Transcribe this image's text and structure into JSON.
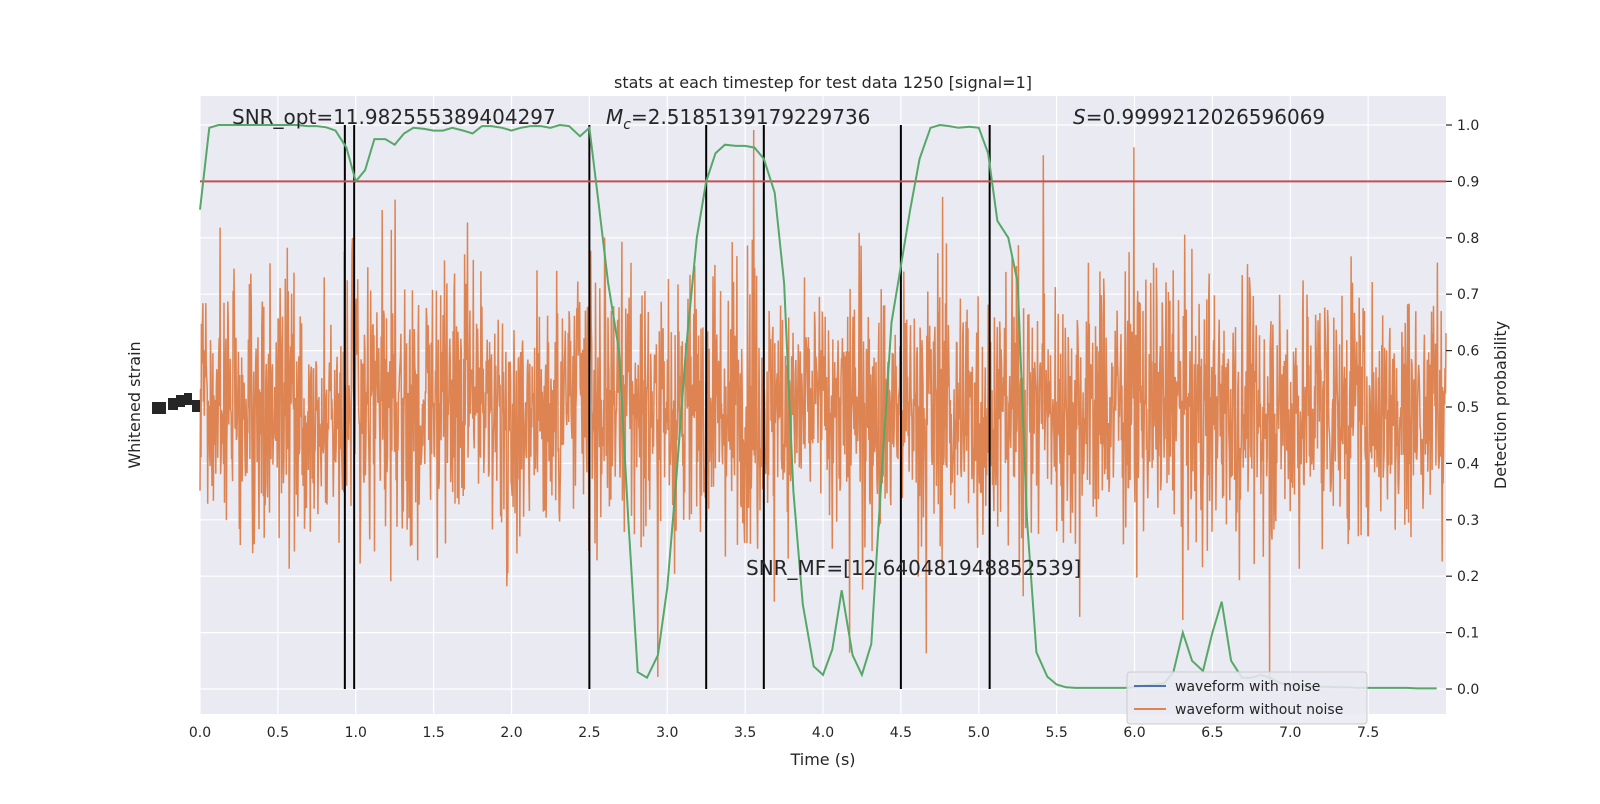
{
  "chart_data": {
    "type": "line",
    "title": "stats at each timestep for test data 1250 [signal=1]",
    "xlabel": "Time (s)",
    "ylabel_left": "Whitened strain",
    "ylabel_right": "Detection probability",
    "xlim": [
      0.0,
      8.0
    ],
    "xticks": [
      0.0,
      0.5,
      1.0,
      1.5,
      2.0,
      2.5,
      3.0,
      3.5,
      4.0,
      4.5,
      5.0,
      5.5,
      6.0,
      6.5,
      7.0,
      7.5
    ],
    "xtick_labels": [
      "0.0",
      "0.5",
      "1.0",
      "1.5",
      "2.0",
      "2.5",
      "3.0",
      "3.5",
      "4.0",
      "4.5",
      "5.0",
      "5.5",
      "6.0",
      "6.5",
      "7.0",
      "7.5"
    ],
    "ylim_right": [
      -0.05,
      1.05
    ],
    "yticks_right": [
      0.0,
      0.1,
      0.2,
      0.3,
      0.4,
      0.5,
      0.6,
      0.7,
      0.8,
      0.9,
      1.0
    ],
    "ytick_labels_right": [
      "0.0",
      "0.1",
      "0.2",
      "0.3",
      "0.4",
      "0.5",
      "0.6",
      "0.7",
      "0.8",
      "0.9",
      "1.0"
    ],
    "grid": true,
    "threshold": 0.9,
    "vertical_lines": [
      0.93,
      0.99,
      2.5,
      3.25,
      3.62,
      4.5,
      5.07
    ],
    "series": [
      {
        "name": "waveform with noise",
        "color": "#4c72b0",
        "axis": "left",
        "visible": false
      },
      {
        "name": "waveform without noise",
        "color": "#dd8452",
        "axis": "left",
        "style": "dense-noise"
      },
      {
        "axis": "right",
        "color": "#55a868",
        "x": [
          0.0,
          0.06,
          0.12,
          0.19,
          0.25,
          0.31,
          0.37,
          0.44,
          0.5,
          0.56,
          0.62,
          0.69,
          0.75,
          0.81,
          0.87,
          0.94,
          1.0,
          1.06,
          1.12,
          1.19,
          1.25,
          1.31,
          1.37,
          1.44,
          1.5,
          1.56,
          1.62,
          1.69,
          1.75,
          1.81,
          1.87,
          1.94,
          2.0,
          2.06,
          2.12,
          2.19,
          2.25,
          2.31,
          2.37,
          2.44,
          2.5,
          2.56,
          2.62,
          2.69,
          2.75,
          2.81,
          2.87,
          2.94,
          3.0,
          3.06,
          3.12,
          3.19,
          3.25,
          3.31,
          3.37,
          3.44,
          3.5,
          3.56,
          3.62,
          3.69,
          3.75,
          3.81,
          3.87,
          3.94,
          4.0,
          4.06,
          4.12,
          4.19,
          4.25,
          4.31,
          4.37,
          4.44,
          4.5,
          4.56,
          4.62,
          4.69,
          4.75,
          4.81,
          4.87,
          4.94,
          5.0,
          5.06,
          5.12,
          5.19,
          5.25,
          5.31,
          5.37,
          5.44,
          5.5,
          5.56,
          5.62,
          5.69,
          5.75,
          5.81,
          5.87,
          5.94,
          6.0,
          6.06,
          6.12,
          6.19,
          6.25,
          6.31,
          6.37,
          6.44,
          6.5,
          6.56,
          6.62,
          6.69,
          6.75,
          6.81,
          6.87,
          6.94,
          7.0,
          7.06,
          7.12,
          7.19,
          7.25,
          7.31,
          7.37,
          7.44,
          7.5,
          7.56,
          7.62,
          7.69,
          7.75,
          7.81,
          7.87,
          7.94
        ],
        "y": [
          0.85,
          0.995,
          1.0,
          1.0,
          1.0,
          1.0,
          1.0,
          1.0,
          1.0,
          1.0,
          1.0,
          0.998,
          0.998,
          0.996,
          0.99,
          0.96,
          0.9,
          0.92,
          0.975,
          0.975,
          0.965,
          0.985,
          0.995,
          0.993,
          0.99,
          0.99,
          0.995,
          0.99,
          0.985,
          0.998,
          0.998,
          0.995,
          0.99,
          0.995,
          0.998,
          0.998,
          0.995,
          1.0,
          0.998,
          0.98,
          0.995,
          0.86,
          0.72,
          0.6,
          0.3,
          0.03,
          0.02,
          0.06,
          0.18,
          0.38,
          0.6,
          0.8,
          0.9,
          0.95,
          0.965,
          0.963,
          0.963,
          0.96,
          0.94,
          0.88,
          0.72,
          0.35,
          0.15,
          0.04,
          0.025,
          0.07,
          0.175,
          0.06,
          0.025,
          0.08,
          0.35,
          0.65,
          0.75,
          0.85,
          0.94,
          0.995,
          1.0,
          0.998,
          0.995,
          0.997,
          0.995,
          0.95,
          0.83,
          0.8,
          0.72,
          0.3,
          0.065,
          0.022,
          0.008,
          0.003,
          0.002,
          0.002,
          0.002,
          0.002,
          0.002,
          0.002,
          0.003,
          0.006,
          0.008,
          0.01,
          0.03,
          0.1,
          0.05,
          0.032,
          0.1,
          0.155,
          0.05,
          0.02,
          0.02,
          0.025,
          0.02,
          0.01,
          0.008,
          0.006,
          0.005,
          0.004,
          0.004,
          0.003,
          0.003,
          0.002,
          0.002,
          0.002,
          0.002,
          0.002,
          0.002,
          0.001,
          0.001,
          0.001
        ]
      },
      {
        "axis": "right",
        "color": "#c44e52",
        "style": "horizontal",
        "value": 0.9
      }
    ],
    "annotations": [
      {
        "id": "snr_opt",
        "text": "SNR_opt=11.982555389404297"
      },
      {
        "id": "mc_symbol",
        "text": "M"
      },
      {
        "id": "mc_sub",
        "text": "c"
      },
      {
        "id": "mc_value",
        "text": "=2.5185139179229736"
      },
      {
        "id": "s_symbol",
        "text": "S"
      },
      {
        "id": "s_value",
        "text": "=0.9999212026596069"
      },
      {
        "id": "snr_mf",
        "text": "SNR_MF=[12.640481948852539]"
      }
    ],
    "legend": {
      "placement": "lower-right",
      "entries": [
        "waveform with noise",
        "waveform without noise"
      ]
    },
    "colors": {
      "axes_bg": "#eaeaf2",
      "grid": "#ffffff",
      "noise": "#dd8452",
      "probability": "#55a868",
      "threshold": "#c44e52",
      "vline": "#000000",
      "legend_with_noise": "#4c72b0",
      "legend_without_noise": "#dd8452"
    }
  }
}
